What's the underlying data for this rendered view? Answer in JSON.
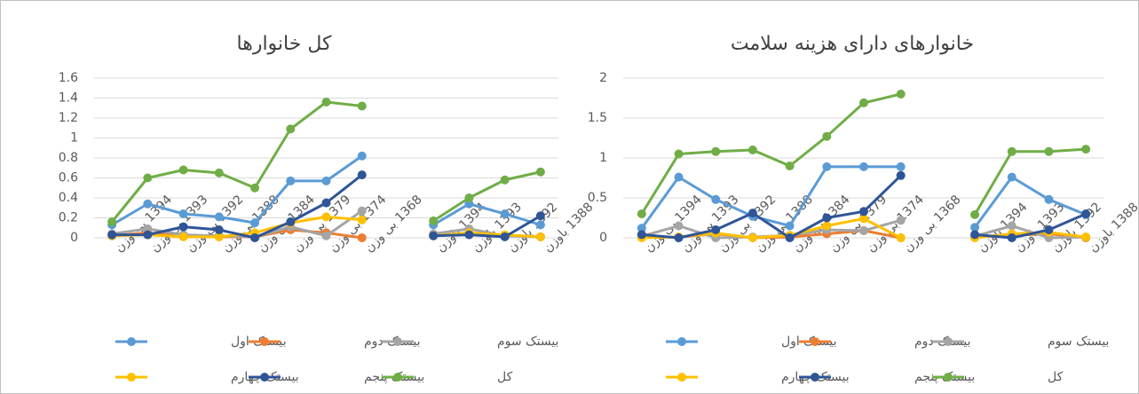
{
  "chart_data": [
    {
      "type": "line",
      "title": "کل خانوارها",
      "categories": [
        "1394 بی وزن",
        "1393 بی وزن",
        "1392 بی وزن",
        "1388 بی وزن",
        "1384 بی وزن",
        "1379 بی وزن",
        "1374 بی وزن",
        "1368 بی وزن",
        null,
        "1394 باوزن",
        "1393 باوزن",
        "1392 باوزن",
        "1388 باوزن"
      ],
      "ylim": [
        0,
        1.6
      ],
      "yticks": [
        0,
        0.2,
        0.4,
        0.6,
        0.8,
        1,
        1.2,
        1.4,
        1.6
      ],
      "grid": true,
      "series": [
        {
          "name": "بیستک اول",
          "color": "#5b9bd5",
          "values": [
            0.13,
            0.34,
            0.24,
            0.21,
            0.15,
            0.57,
            0.57,
            0.82,
            null,
            0.13,
            0.34,
            0.24,
            0.13
          ]
        },
        {
          "name": "بیستک دوم",
          "color": "#ed7d31",
          "values": [
            0.02,
            0.05,
            0.02,
            0.01,
            0.01,
            0.08,
            0.05,
            0.0,
            null,
            0.02,
            0.05,
            0.02,
            0.01
          ]
        },
        {
          "name": "بیستک سوم",
          "color": "#a5a5a5",
          "values": [
            0.04,
            0.09,
            0.03,
            0.02,
            0.01,
            0.11,
            0.02,
            0.27,
            null,
            0.04,
            0.09,
            0.02,
            0.01
          ]
        },
        {
          "name": "بیستک چهارم",
          "color": "#ffc000",
          "values": [
            0.02,
            0.03,
            0.01,
            0.01,
            0.05,
            0.15,
            0.21,
            0.18,
            null,
            0.02,
            0.05,
            0.03,
            0.01
          ]
        },
        {
          "name": "بیستک پنجم",
          "color": "#2f5597",
          "values": [
            0.03,
            0.03,
            0.11,
            0.08,
            0.0,
            0.16,
            0.35,
            0.63,
            null,
            0.02,
            0.03,
            0.01,
            0.22
          ]
        },
        {
          "name": "کل",
          "color": "#70ad47",
          "values": [
            0.16,
            0.6,
            0.68,
            0.65,
            0.5,
            1.09,
            1.36,
            1.32,
            null,
            0.17,
            0.4,
            0.58,
            0.66
          ]
        }
      ]
    },
    {
      "type": "line",
      "title": "خانوارهای دارای هزینه سلامت",
      "categories": [
        "1394 بی وزن",
        "1393 بی وزن",
        "1392 بی وزن",
        "1388 بی وزن",
        "1384 بی وزن",
        "1379 بی وزن",
        "1374 بی وزن",
        "1368 بی وزن",
        null,
        "1394 باوزن",
        "1393 باوزن",
        "1392 باوزن",
        "1388 باوزن"
      ],
      "ylim": [
        0,
        2
      ],
      "yticks": [
        0,
        0.5,
        1,
        1.5,
        2
      ],
      "grid": true,
      "series": [
        {
          "name": "بیستک اول",
          "color": "#5b9bd5",
          "values": [
            0.12,
            0.76,
            0.48,
            0.27,
            0.15,
            0.89,
            0.89,
            0.89,
            null,
            0.13,
            0.76,
            0.48,
            0.29
          ]
        },
        {
          "name": "بیستک دوم",
          "color": "#ed7d31",
          "values": [
            0.01,
            0.01,
            0.05,
            0.0,
            0.01,
            0.05,
            0.09,
            0.0,
            null,
            0.01,
            0.03,
            0.05,
            0.0
          ]
        },
        {
          "name": "بیستک سوم",
          "color": "#a5a5a5",
          "values": [
            0.02,
            0.15,
            0.0,
            0.01,
            0.03,
            0.1,
            0.09,
            0.22,
            null,
            0.02,
            0.15,
            0.0,
            0.01
          ]
        },
        {
          "name": "بیستک چهارم",
          "color": "#ffc000",
          "values": [
            0.0,
            0.01,
            0.06,
            0.0,
            0.03,
            0.15,
            0.24,
            0.0,
            null,
            0.0,
            0.05,
            0.07,
            0.01
          ]
        },
        {
          "name": "بیستک پنجم",
          "color": "#2f5597",
          "values": [
            0.04,
            0.0,
            0.1,
            0.31,
            0.0,
            0.25,
            0.33,
            0.78,
            null,
            0.04,
            0.0,
            0.1,
            0.3
          ]
        },
        {
          "name": "کل",
          "color": "#70ad47",
          "values": [
            0.3,
            1.05,
            1.08,
            1.1,
            0.9,
            1.27,
            1.69,
            1.8,
            null,
            0.29,
            1.08,
            1.08,
            1.11
          ]
        }
      ]
    }
  ]
}
